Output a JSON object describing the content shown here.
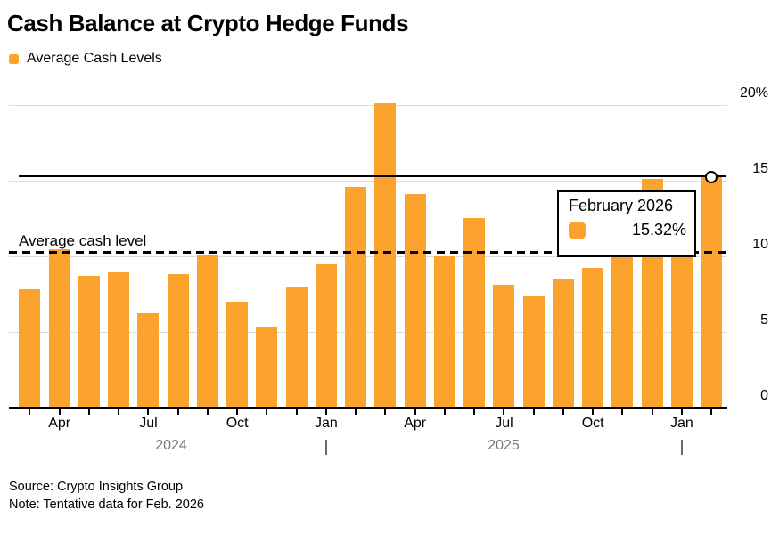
{
  "title": "Cash Balance at Crypto Hedge Funds",
  "legend": {
    "label": "Average Cash Levels"
  },
  "annotations": {
    "average_line_label": "Average cash level",
    "average_line_value": 10.3,
    "last_value_line": 15.32
  },
  "tooltip": {
    "title": "February 2026",
    "value_label": "15.32%"
  },
  "footer": {
    "source": "Source: Crypto Insights Group",
    "note": "Note: Tentative data for Feb. 2026"
  },
  "colors": {
    "bar": "#FCA32E",
    "grid": "#DCDCDC",
    "axis": "#000000",
    "year_text": "#787878",
    "tooltip_border": "#000000",
    "background": "#FFFFFF"
  },
  "chart_data": {
    "type": "bar",
    "title": "Cash Balance at Crypto Hedge Funds",
    "series_name": "Average Cash Levels",
    "unit": "%",
    "categories": [
      "Mar 2024",
      "Apr 2024",
      "May 2024",
      "Jun 2024",
      "Jul 2024",
      "Aug 2024",
      "Sep 2024",
      "Oct 2024",
      "Nov 2024",
      "Dec 2024",
      "Jan 2025",
      "Feb 2025",
      "Mar 2025",
      "Apr 2025",
      "May 2025",
      "Jun 2025",
      "Jul 2025",
      "Aug 2025",
      "Sep 2025",
      "Oct 2025",
      "Nov 2025",
      "Dec 2025",
      "Jan 2026",
      "Feb 2026"
    ],
    "values": [
      7.8,
      10.45,
      8.7,
      8.95,
      6.25,
      8.85,
      10.1,
      7.0,
      5.35,
      8.0,
      9.5,
      14.6,
      20.1,
      14.1,
      10.0,
      12.55,
      8.1,
      7.35,
      8.5,
      9.25,
      10.9,
      15.1,
      13.0,
      15.32
    ],
    "ylim": [
      0,
      20
    ],
    "yticks": [
      0,
      5,
      10,
      15,
      20
    ],
    "ytick_labels": [
      "0",
      "5",
      "10",
      "15",
      "20%"
    ],
    "x_axis_labels": [
      {
        "label": "Apr",
        "index": 1
      },
      {
        "label": "Jul",
        "index": 4
      },
      {
        "label": "Oct",
        "index": 7
      },
      {
        "label": "Jan",
        "index": 10
      },
      {
        "label": "Apr",
        "index": 13
      },
      {
        "label": "Jul",
        "index": 16
      },
      {
        "label": "Oct",
        "index": 19
      },
      {
        "label": "Jan",
        "index": 22
      }
    ],
    "year_labels": [
      "2024",
      "2025"
    ],
    "year_separator_indices": [
      10,
      22
    ],
    "highlight_index": 23,
    "legend_position": "top-left",
    "grid": true
  }
}
